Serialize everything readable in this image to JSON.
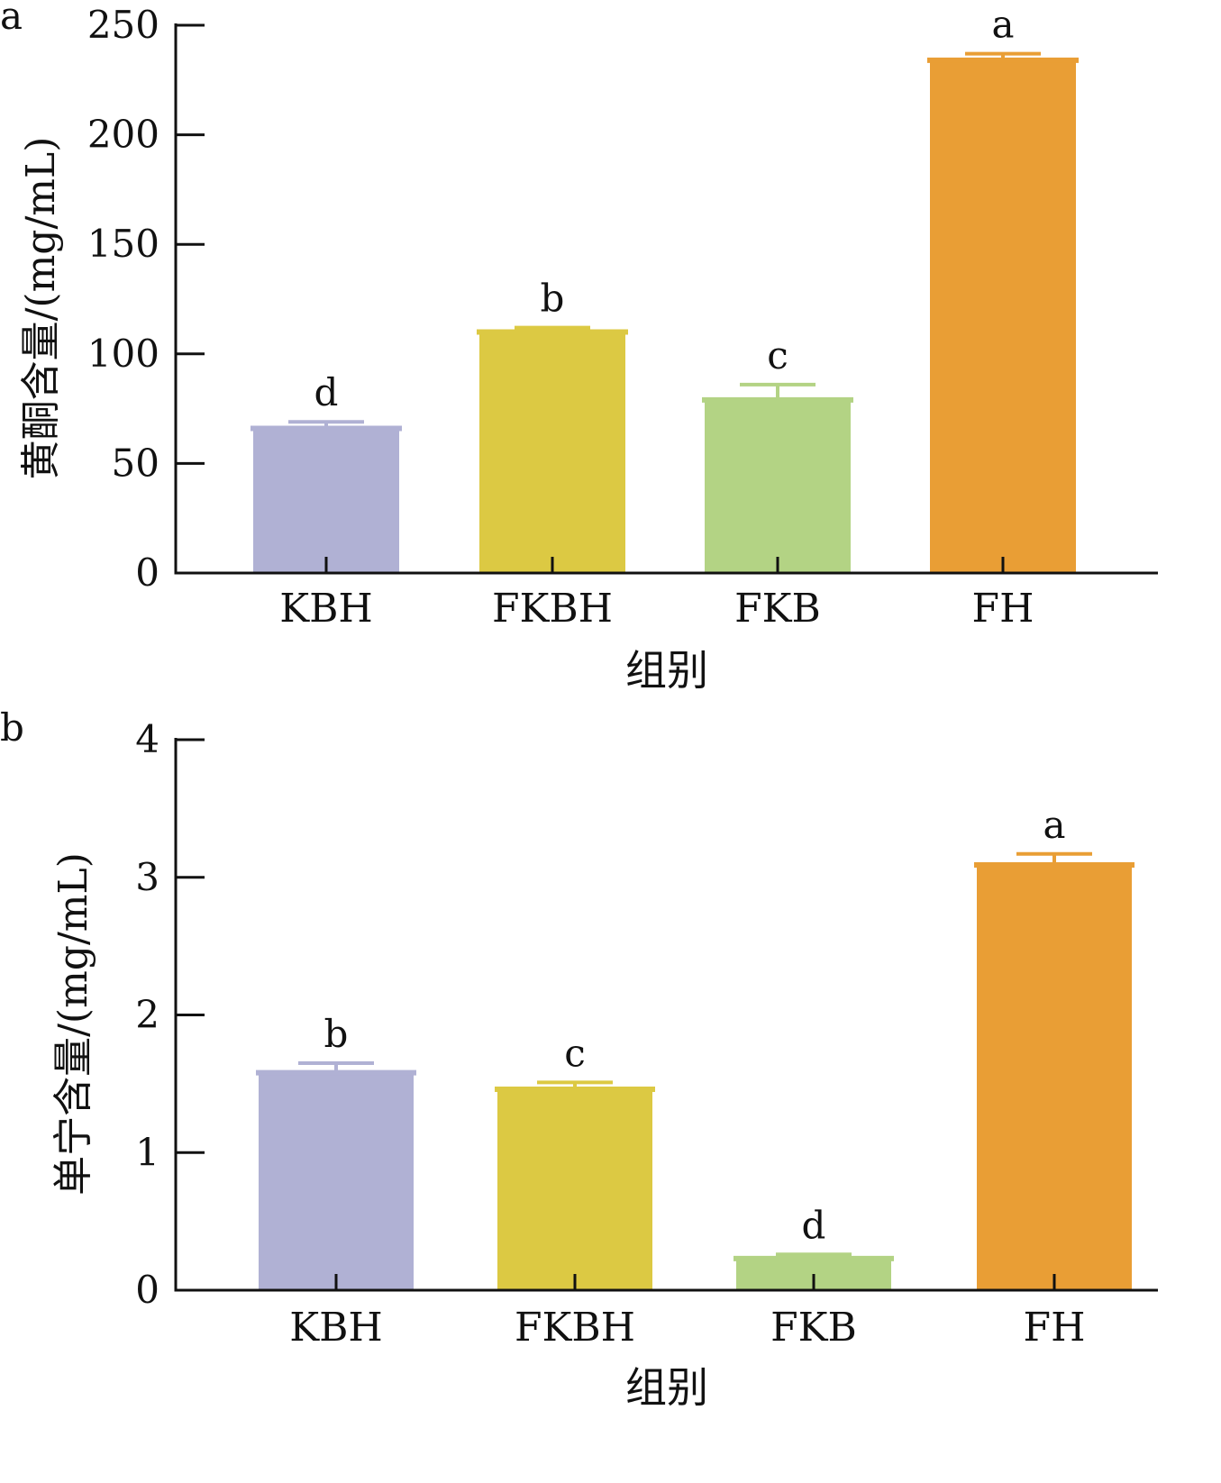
{
  "chart_data": [
    {
      "panel_label": "a",
      "type": "bar",
      "categories": [
        "KBH",
        "FKBH",
        "FKB",
        "FH"
      ],
      "values": [
        66,
        110,
        79,
        234
      ],
      "errors": [
        3,
        2,
        7,
        3
      ],
      "significance": [
        "d",
        "b",
        "c",
        "a"
      ],
      "colors": [
        "#b0b1d4",
        "#dcc943",
        "#b3d384",
        "#e99e35"
      ],
      "xlabel": "组别",
      "ylabel": "黄酮含量/(mg/mL)",
      "ylim": [
        0,
        250
      ],
      "yticks": [
        "0",
        "50",
        "100",
        "150",
        "200",
        "250"
      ],
      "grid": false,
      "legend": "none"
    },
    {
      "panel_label": "b",
      "type": "bar",
      "categories": [
        "KBH",
        "FKBH",
        "FKB",
        "FH"
      ],
      "values": [
        1.58,
        1.46,
        0.23,
        3.09
      ],
      "errors": [
        0.07,
        0.05,
        0.03,
        0.08
      ],
      "significance": [
        "b",
        "c",
        "d",
        "a"
      ],
      "colors": [
        "#b0b1d4",
        "#dcc943",
        "#b3d384",
        "#e99e35"
      ],
      "xlabel": "组别",
      "ylabel": "单宁含量/(mg/mL)",
      "ylim": [
        0,
        4
      ],
      "yticks": [
        "0",
        "1",
        "2",
        "3",
        "4"
      ],
      "grid": false,
      "legend": "none"
    }
  ]
}
